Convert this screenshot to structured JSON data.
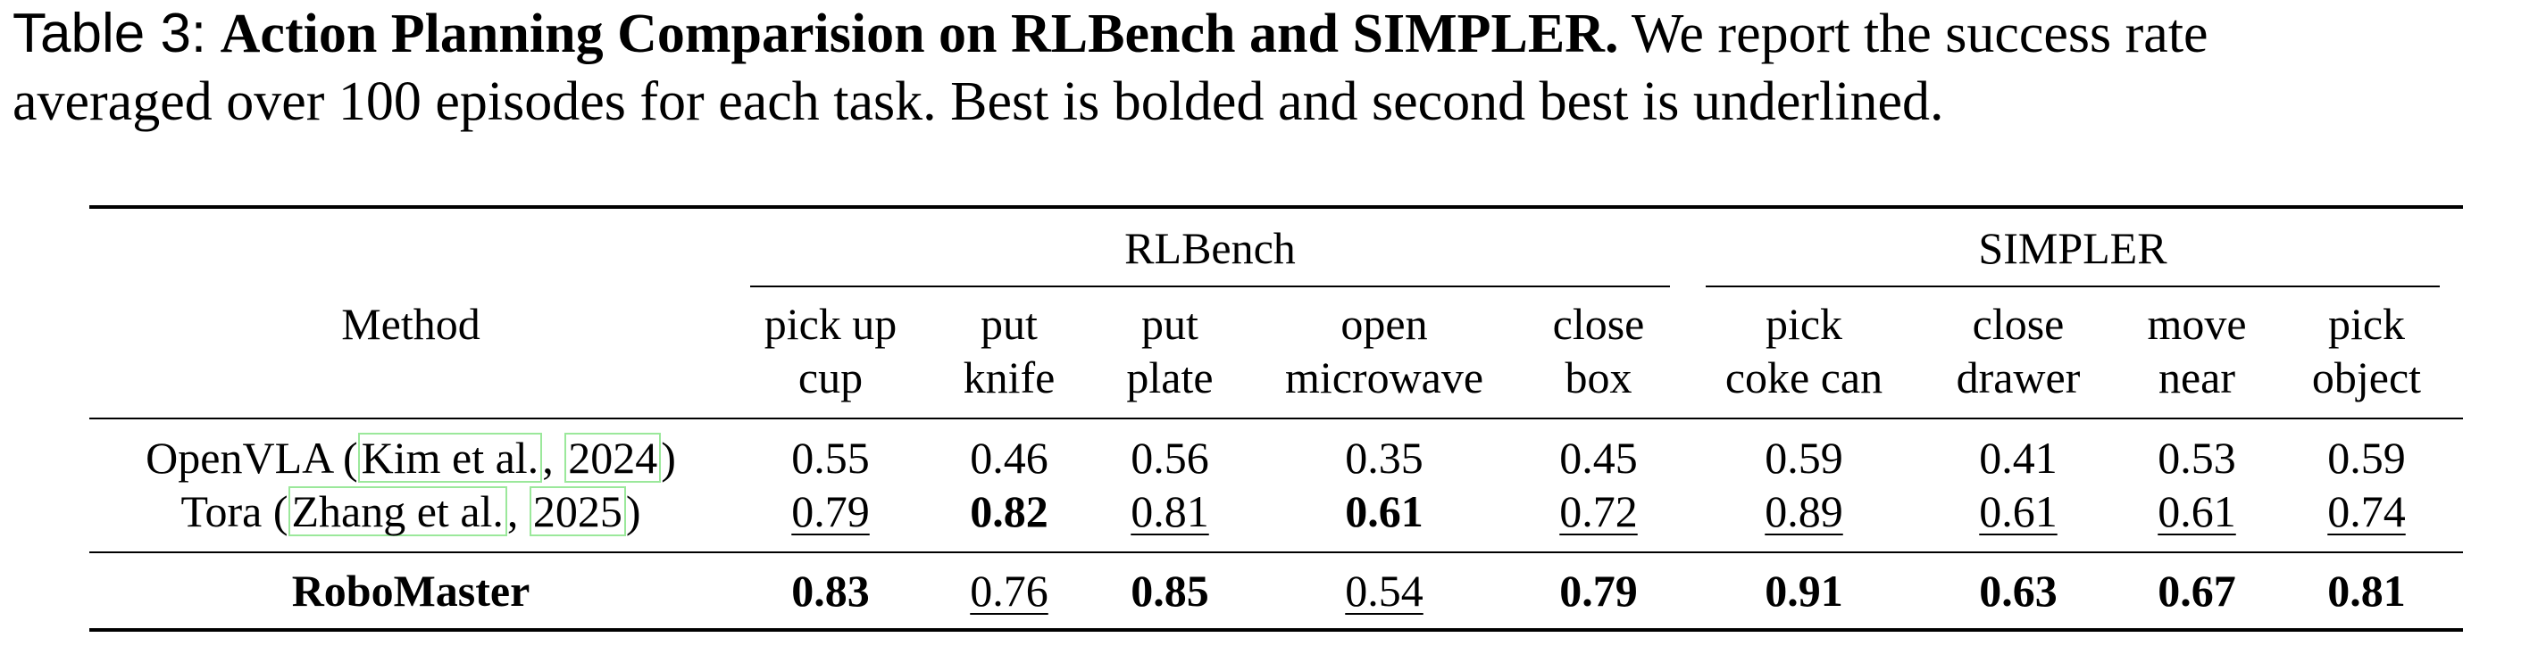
{
  "caption": {
    "label": "Table 3:",
    "title": "Action Planning Comparision on RLBench and SIMPLER.",
    "text": "We report the success rate averaged over 100 episodes for each task. Best is bolded and second best is underlined.",
    "line1_rest": "We report the success rate",
    "line2": "averaged over 100 episodes for each task. Best is bolded and second best is underlined."
  },
  "table": {
    "method_header": "Method",
    "groups": [
      "RLBench",
      "SIMPLER"
    ],
    "columns": [
      {
        "line1": "pick up",
        "line2": "cup"
      },
      {
        "line1": "put",
        "line2": "knife"
      },
      {
        "line1": "put",
        "line2": "plate"
      },
      {
        "line1": "open",
        "line2": "microwave"
      },
      {
        "line1": "close",
        "line2": "box"
      },
      {
        "line1": "pick",
        "line2": "coke can"
      },
      {
        "line1": "close",
        "line2": "drawer"
      },
      {
        "line1": "move",
        "line2": "near"
      },
      {
        "line1": "pick",
        "line2": "object"
      }
    ],
    "rows": [
      {
        "method": "OpenVLA",
        "cite_author": "Kim et al.",
        "cite_year": "2024",
        "values": [
          "0.55",
          "0.46",
          "0.56",
          "0.35",
          "0.45",
          "0.59",
          "0.41",
          "0.53",
          "0.59"
        ],
        "styles": [
          "",
          "",
          "",
          "",
          "",
          "",
          "",
          "",
          ""
        ]
      },
      {
        "method": "Tora",
        "cite_author": "Zhang et al.",
        "cite_year": "2025",
        "values": [
          "0.79",
          "0.82",
          "0.81",
          "0.61",
          "0.72",
          "0.89",
          "0.61",
          "0.61",
          "0.74"
        ],
        "styles": [
          "u",
          "b",
          "u",
          "b",
          "u",
          "u",
          "u",
          "u",
          "u"
        ]
      },
      {
        "method": "RoboMaster",
        "values": [
          "0.83",
          "0.76",
          "0.85",
          "0.54",
          "0.79",
          "0.91",
          "0.63",
          "0.67",
          "0.81"
        ],
        "styles": [
          "b",
          "u",
          "b",
          "u",
          "b",
          "b",
          "b",
          "b",
          "b"
        ]
      }
    ]
  }
}
